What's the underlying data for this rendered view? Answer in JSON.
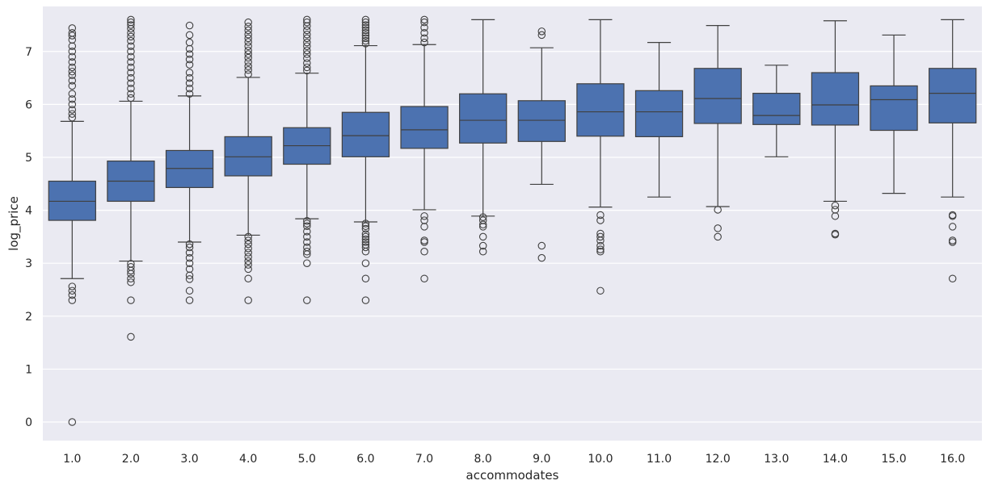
{
  "chart_data": {
    "type": "boxplot",
    "xlabel": "accommodates",
    "ylabel": "log_price",
    "ylim": [
      -0.35,
      7.85
    ],
    "yticks": [
      0,
      1,
      2,
      3,
      4,
      5,
      6,
      7
    ],
    "grid": true,
    "box_color": "#4c72b0",
    "background_color": "#eaeaf2",
    "categories": [
      "1.0",
      "2.0",
      "3.0",
      "4.0",
      "5.0",
      "6.0",
      "7.0",
      "8.0",
      "9.0",
      "10.0",
      "11.0",
      "12.0",
      "13.0",
      "14.0",
      "15.0",
      "16.0"
    ],
    "boxes": [
      {
        "q1": 3.81,
        "median": 4.17,
        "q3": 4.55,
        "whislo": 2.71,
        "whishi": 5.68,
        "outliers": [
          7.44,
          7.35,
          7.3,
          7.22,
          7.1,
          7.0,
          6.9,
          6.8,
          6.7,
          6.62,
          6.55,
          6.45,
          6.35,
          6.2,
          6.1,
          6.0,
          5.9,
          5.82,
          5.75,
          2.56,
          2.48,
          2.4,
          2.3,
          0.0
        ]
      },
      {
        "q1": 4.17,
        "median": 4.55,
        "q3": 4.93,
        "whislo": 3.04,
        "whishi": 6.06,
        "outliers": [
          7.6,
          7.55,
          7.5,
          7.43,
          7.35,
          7.28,
          7.2,
          7.1,
          7.0,
          6.9,
          6.8,
          6.7,
          6.6,
          6.5,
          6.4,
          6.3,
          6.2,
          6.12,
          2.99,
          2.93,
          2.86,
          2.8,
          2.71,
          2.64,
          2.3,
          1.61
        ]
      },
      {
        "q1": 4.43,
        "median": 4.79,
        "q3": 5.13,
        "whislo": 3.4,
        "whishi": 6.16,
        "outliers": [
          7.49,
          7.31,
          7.17,
          7.05,
          6.95,
          6.85,
          6.75,
          6.6,
          6.5,
          6.4,
          6.3,
          6.2,
          3.36,
          3.3,
          3.2,
          3.1,
          3.0,
          2.89,
          2.77,
          2.7,
          2.48,
          2.3
        ]
      },
      {
        "q1": 4.65,
        "median": 5.01,
        "q3": 5.39,
        "whislo": 3.53,
        "whishi": 6.51,
        "outliers": [
          7.55,
          7.47,
          7.4,
          7.32,
          7.25,
          7.18,
          7.1,
          7.02,
          6.95,
          6.88,
          6.8,
          6.72,
          6.65,
          6.57,
          3.5,
          3.43,
          3.36,
          3.28,
          3.2,
          3.12,
          3.04,
          2.97,
          2.89,
          2.71,
          2.3
        ]
      },
      {
        "q1": 4.87,
        "median": 5.22,
        "q3": 5.56,
        "whislo": 3.84,
        "whishi": 6.59,
        "outliers": [
          7.6,
          7.55,
          7.48,
          7.4,
          7.32,
          7.25,
          7.17,
          7.1,
          7.02,
          6.95,
          6.87,
          6.78,
          6.7,
          6.64,
          3.8,
          3.75,
          3.7,
          3.6,
          3.5,
          3.4,
          3.3,
          3.22,
          3.17,
          3.0,
          2.3
        ]
      },
      {
        "q1": 5.01,
        "median": 5.41,
        "q3": 5.85,
        "whislo": 3.78,
        "whishi": 7.11,
        "outliers": [
          7.6,
          7.55,
          7.5,
          7.45,
          7.4,
          7.35,
          7.3,
          7.25,
          7.2,
          7.15,
          3.75,
          3.7,
          3.65,
          3.55,
          3.5,
          3.45,
          3.4,
          3.35,
          3.3,
          3.22,
          3.0,
          2.71,
          2.3
        ]
      },
      {
        "q1": 5.17,
        "median": 5.52,
        "q3": 5.96,
        "whislo": 4.01,
        "whishi": 7.13,
        "outliers": [
          7.6,
          7.55,
          7.45,
          7.35,
          7.25,
          7.17,
          3.89,
          3.81,
          3.69,
          3.43,
          3.4,
          3.22,
          2.71
        ]
      },
      {
        "q1": 5.27,
        "median": 5.7,
        "q3": 6.2,
        "whislo": 3.89,
        "whishi": 7.6,
        "outliers": [
          3.87,
          3.81,
          3.73,
          3.69,
          3.5,
          3.33,
          3.22
        ]
      },
      {
        "q1": 5.3,
        "median": 5.7,
        "q3": 6.07,
        "whislo": 4.49,
        "whishi": 7.07,
        "outliers": [
          7.38,
          7.31,
          3.33,
          3.1
        ]
      },
      {
        "q1": 5.4,
        "median": 5.86,
        "q3": 6.39,
        "whislo": 4.06,
        "whishi": 7.6,
        "outliers": [
          3.91,
          3.81,
          3.56,
          3.5,
          3.43,
          3.33,
          3.26,
          3.22,
          2.48
        ]
      },
      {
        "q1": 5.39,
        "median": 5.86,
        "q3": 6.26,
        "whislo": 4.25,
        "whishi": 7.17,
        "outliers": []
      },
      {
        "q1": 5.64,
        "median": 6.11,
        "q3": 6.68,
        "whislo": 4.07,
        "whishi": 7.49,
        "outliers": [
          4.01,
          3.66,
          3.5
        ]
      },
      {
        "q1": 5.62,
        "median": 5.79,
        "q3": 6.21,
        "whislo": 5.01,
        "whishi": 6.74,
        "outliers": []
      },
      {
        "q1": 5.61,
        "median": 5.99,
        "q3": 6.6,
        "whislo": 4.17,
        "whishi": 7.58,
        "outliers": [
          4.09,
          4.01,
          3.89,
          3.56,
          3.54
        ]
      },
      {
        "q1": 5.51,
        "median": 6.09,
        "q3": 6.35,
        "whislo": 4.32,
        "whishi": 7.31,
        "outliers": []
      },
      {
        "q1": 5.65,
        "median": 6.21,
        "q3": 6.68,
        "whislo": 4.25,
        "whishi": 7.6,
        "outliers": [
          3.91,
          3.89,
          3.69,
          3.43,
          3.4,
          2.71
        ]
      }
    ]
  }
}
